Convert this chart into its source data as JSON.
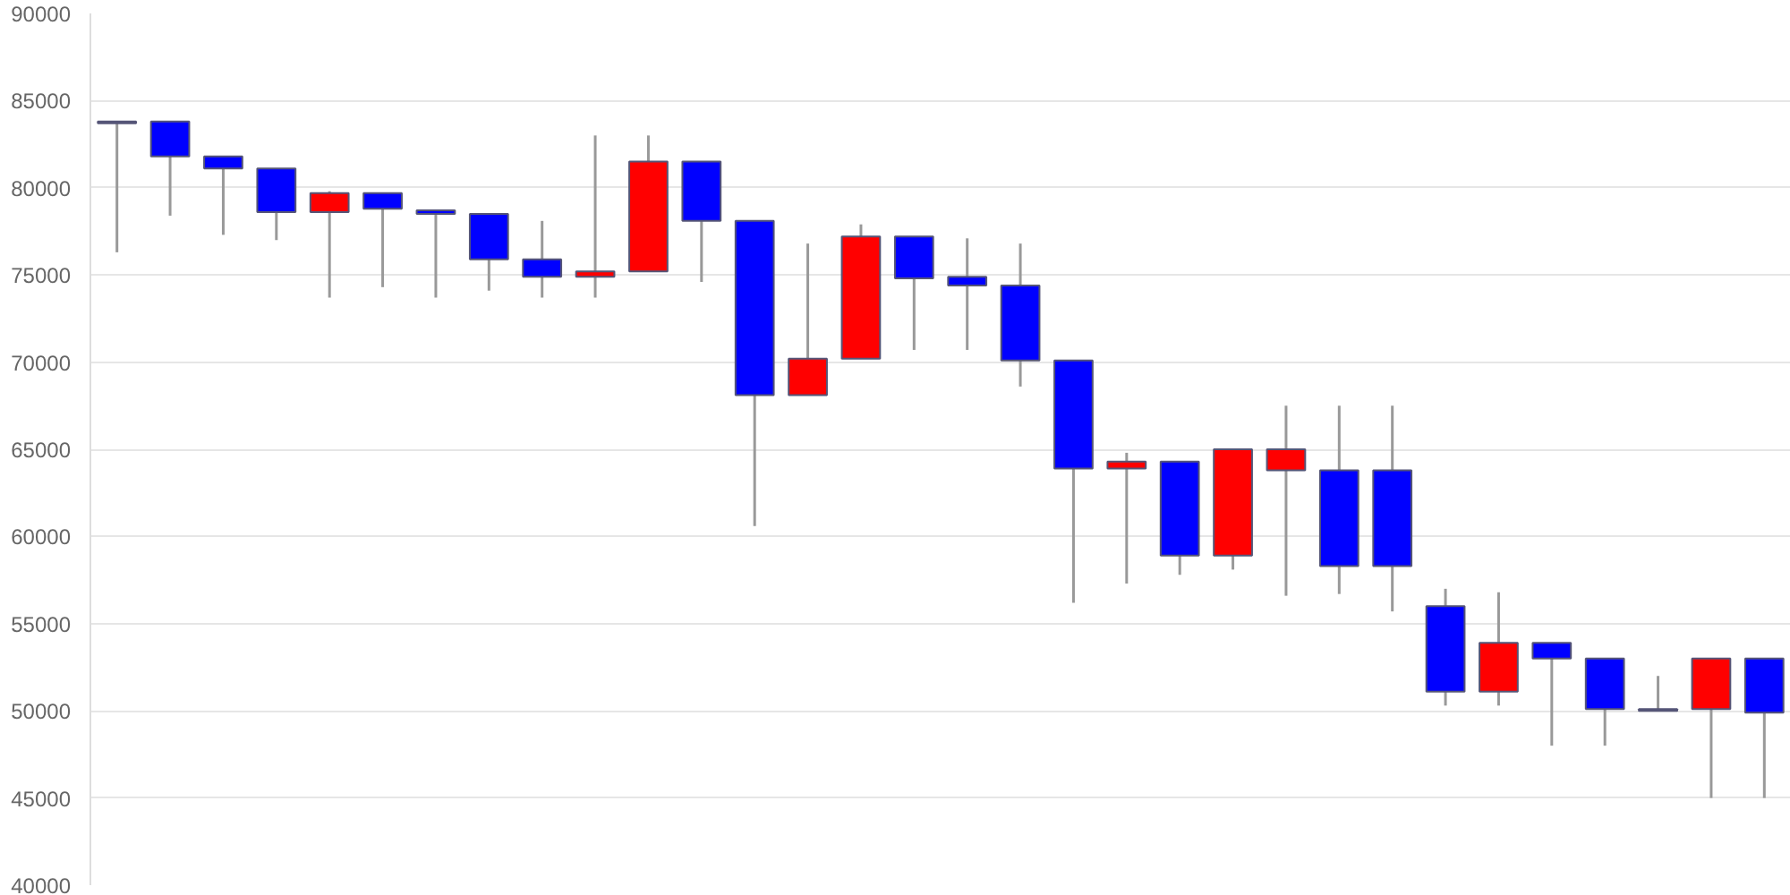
{
  "chart_data": {
    "type": "candlestick",
    "categories": [
      null,
      null,
      null,
      null,
      null,
      null,
      null,
      null,
      null,
      null,
      null,
      null,
      null,
      null,
      null,
      null,
      null,
      null,
      null,
      null,
      null,
      null,
      null,
      null,
      null,
      null,
      null,
      null,
      null,
      null,
      null,
      null
    ],
    "ohlc": [
      [
        83800,
        83800,
        76300,
        83700
      ],
      [
        83800,
        83800,
        78400,
        81800
      ],
      [
        81800,
        81800,
        77300,
        81100
      ],
      [
        81100,
        81100,
        77000,
        78600
      ],
      [
        78600,
        79800,
        73700,
        79700
      ],
      [
        79700,
        79700,
        74300,
        78800
      ],
      [
        78700,
        78700,
        73700,
        78500
      ],
      [
        78500,
        78500,
        74100,
        75900
      ],
      [
        75900,
        78100,
        73700,
        74900
      ],
      [
        74900,
        83000,
        73700,
        75200
      ],
      [
        75200,
        83000,
        75200,
        81500
      ],
      [
        81500,
        81500,
        74600,
        78100
      ],
      [
        78100,
        78100,
        60600,
        68100
      ],
      [
        68100,
        76800,
        68100,
        70200
      ],
      [
        70200,
        77900,
        70200,
        77200
      ],
      [
        77200,
        77200,
        70700,
        74800
      ],
      [
        74900,
        77100,
        70700,
        74400
      ],
      [
        74400,
        76800,
        68600,
        70100
      ],
      [
        70100,
        70100,
        56200,
        63900
      ],
      [
        63900,
        64800,
        57300,
        64300
      ],
      [
        64300,
        64300,
        57800,
        58900
      ],
      [
        58900,
        65000,
        58100,
        65000
      ],
      [
        63800,
        67500,
        56600,
        65000
      ],
      [
        63800,
        67500,
        56700,
        58300
      ],
      [
        63800,
        67500,
        55700,
        58300
      ],
      [
        56000,
        57000,
        50300,
        51100
      ],
      [
        51100,
        56800,
        50300,
        53900
      ],
      [
        53900,
        53900,
        48000,
        53000
      ],
      [
        53000,
        53000,
        48000,
        50100
      ],
      [
        50100,
        52000,
        50000,
        50000
      ],
      [
        50100,
        53000,
        45000,
        53000
      ],
      [
        53000,
        53000,
        45000,
        49900
      ]
    ],
    "colors": [
      "#1a1a5e",
      "#0000ff",
      "#0000ff",
      "#0000ff",
      "#ff0000",
      "#0000ff",
      "#0000ff",
      "#0000ff",
      "#0000ff",
      "#ff0000",
      "#ff0000",
      "#0000ff",
      "#0000ff",
      "#ff0000",
      "#ff0000",
      "#0000ff",
      "#0000ff",
      "#0000ff",
      "#0000ff",
      "#ff0000",
      "#0000ff",
      "#ff0000",
      "#ff0000",
      "#0000ff",
      "#0000ff",
      "#0000ff",
      "#ff0000",
      "#0000ff",
      "#0000ff",
      "#1a1a5e",
      "#ff0000",
      "#0000ff"
    ],
    "ylim": [
      40000,
      90000
    ],
    "yticks": [
      40000,
      45000,
      50000,
      55000,
      60000,
      65000,
      70000,
      75000,
      80000,
      85000,
      90000
    ],
    "grid": "y",
    "tick_labels": "y"
  }
}
